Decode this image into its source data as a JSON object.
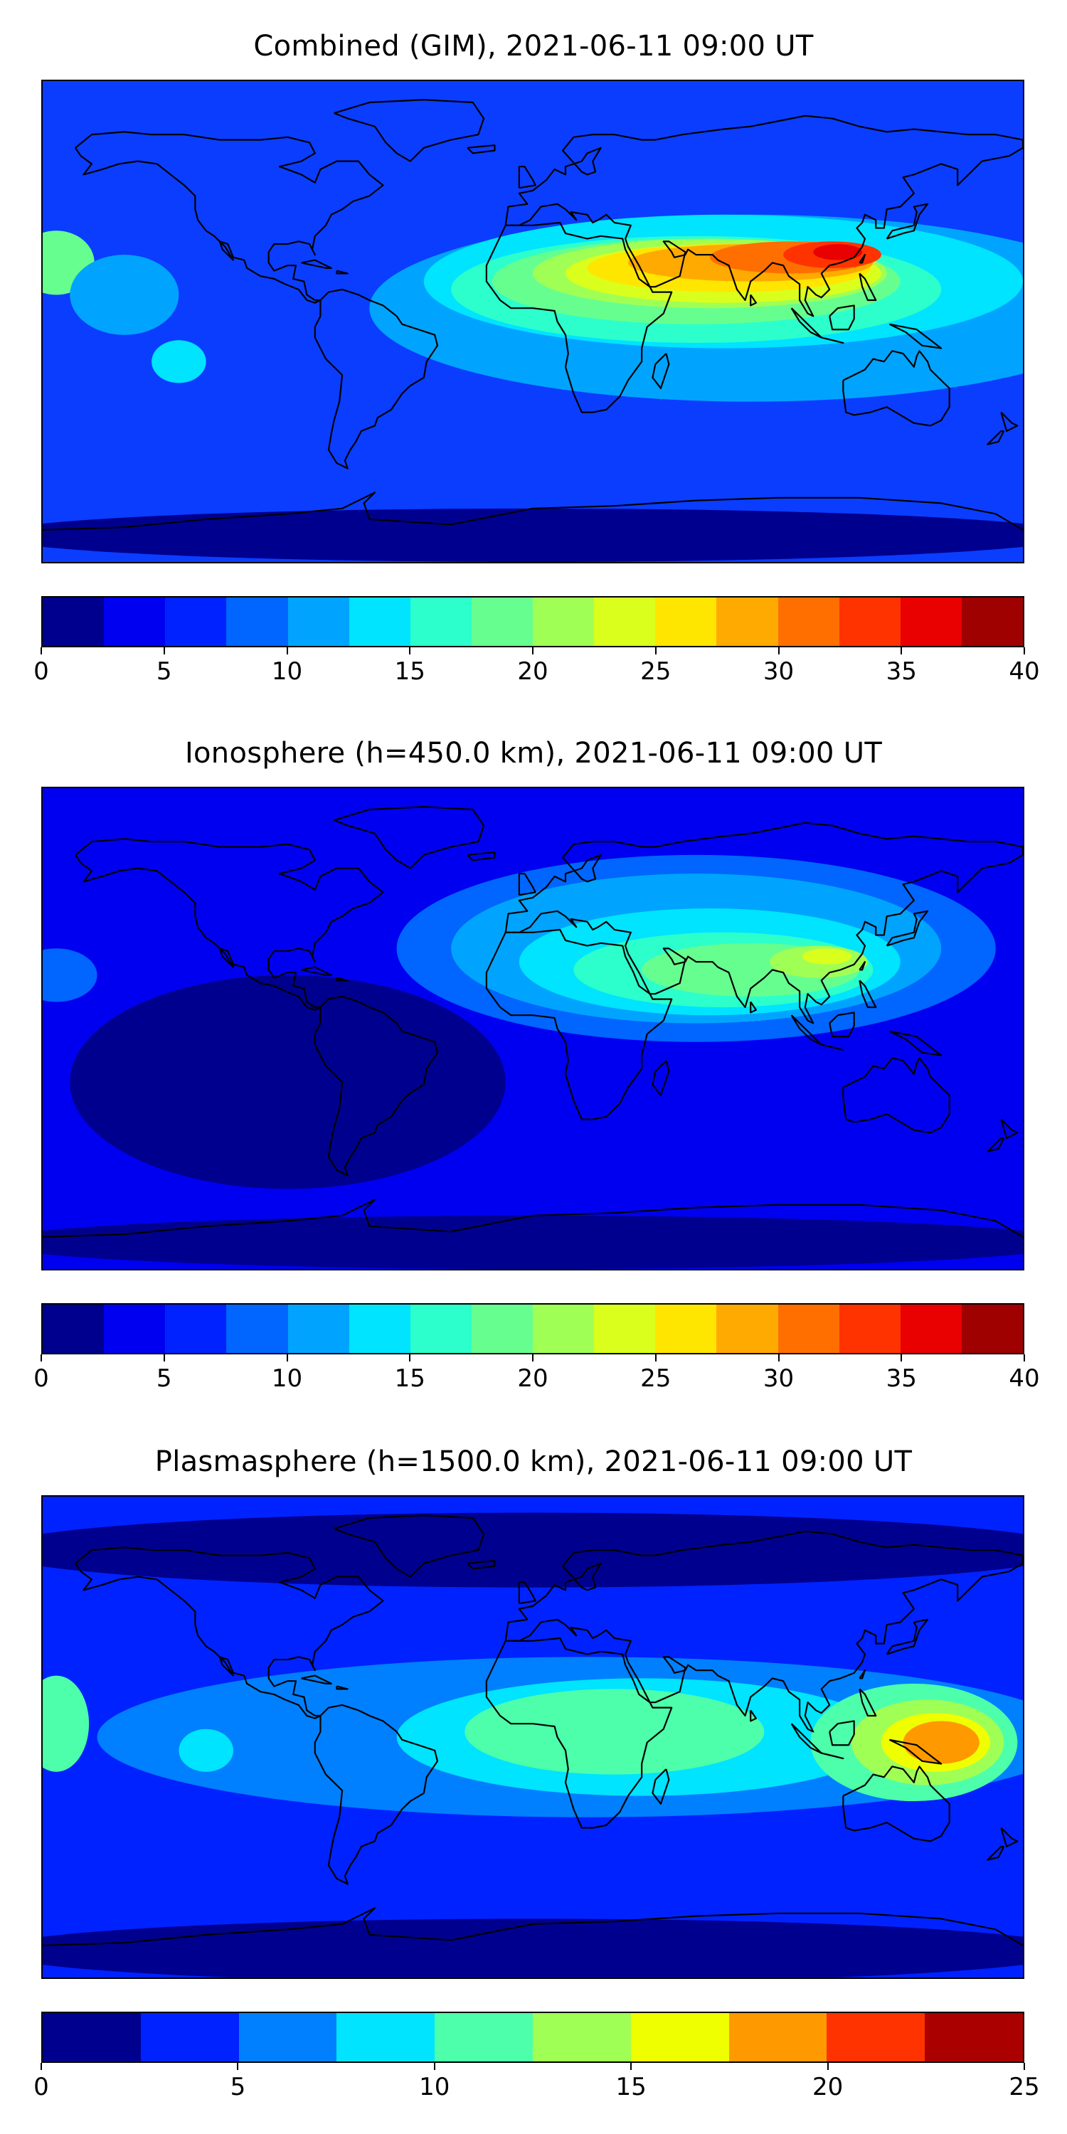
{
  "panels": [
    {
      "id": "combined",
      "title": "Combined (GIM), 2021-06-11 09:00 UT",
      "colorbar": {
        "min": 0,
        "max": 40,
        "ticks": [
          "0",
          "5",
          "10",
          "15",
          "20",
          "25",
          "30",
          "35",
          "40"
        ],
        "colors": [
          "#00008f",
          "#0000f0",
          "#0022ff",
          "#0066ff",
          "#00a4ff",
          "#00e4ff",
          "#2cffcb",
          "#66ff8f",
          "#a0ff55",
          "#daff1d",
          "#ffe600",
          "#ffaa00",
          "#ff6f00",
          "#ff3300",
          "#e90000",
          "#9f0000"
        ]
      },
      "field": {
        "background": "#0b3dff",
        "blobs": [
          {
            "lon": 80,
            "lat": 5,
            "rx_deg": 140,
            "ry_deg": 35,
            "color": "#00a4ff"
          },
          {
            "lon": 70,
            "lat": 15,
            "rx_deg": 110,
            "ry_deg": 25,
            "color": "#00e4ff"
          },
          {
            "lon": 60,
            "lat": 12,
            "rx_deg": 90,
            "ry_deg": 20,
            "color": "#2cffcb"
          },
          {
            "lon": 60,
            "lat": 15,
            "rx_deg": 75,
            "ry_deg": 16,
            "color": "#66ff8f"
          },
          {
            "lon": 65,
            "lat": 18,
            "rx_deg": 65,
            "ry_deg": 13,
            "color": "#a0ff55"
          },
          {
            "lon": 70,
            "lat": 18,
            "rx_deg": 58,
            "ry_deg": 11,
            "color": "#daff1d"
          },
          {
            "lon": 72,
            "lat": 20,
            "rx_deg": 52,
            "ry_deg": 9,
            "color": "#ffe600"
          },
          {
            "lon": 80,
            "lat": 22,
            "rx_deg": 45,
            "ry_deg": 7,
            "color": "#ffaa00"
          },
          {
            "lon": 95,
            "lat": 24,
            "rx_deg": 30,
            "ry_deg": 6,
            "color": "#ff6f00"
          },
          {
            "lon": 110,
            "lat": 25,
            "rx_deg": 18,
            "ry_deg": 5,
            "color": "#ff3300"
          },
          {
            "lon": 112,
            "lat": 26,
            "rx_deg": 9,
            "ry_deg": 3,
            "color": "#e90000"
          },
          {
            "lon": -175,
            "lat": 22,
            "rx_deg": 14,
            "ry_deg": 12,
            "color": "#66ff8f"
          },
          {
            "lon": -150,
            "lat": 10,
            "rx_deg": 20,
            "ry_deg": 15,
            "color": "#00a4ff"
          },
          {
            "lon": -130,
            "lat": -15,
            "rx_deg": 10,
            "ry_deg": 8,
            "color": "#00e4ff"
          },
          {
            "lon": 0,
            "lat": -80,
            "rx_deg": 200,
            "ry_deg": 10,
            "color": "#00008f"
          }
        ]
      }
    },
    {
      "id": "ionosphere",
      "title": "Ionosphere  (h=450.0 km), 2021-06-11 09:00 UT",
      "colorbar": {
        "min": 0,
        "max": 40,
        "ticks": [
          "0",
          "5",
          "10",
          "15",
          "20",
          "25",
          "30",
          "35",
          "40"
        ],
        "colors": [
          "#00008f",
          "#0000f0",
          "#0022ff",
          "#0066ff",
          "#00a4ff",
          "#00e4ff",
          "#2cffcb",
          "#66ff8f",
          "#a0ff55",
          "#daff1d",
          "#ffe600",
          "#ffaa00",
          "#ff6f00",
          "#ff3300",
          "#e90000",
          "#9f0000"
        ]
      },
      "field": {
        "background": "#0000f0",
        "blobs": [
          {
            "lon": 60,
            "lat": 30,
            "rx_deg": 110,
            "ry_deg": 35,
            "color": "#0066ff"
          },
          {
            "lon": 60,
            "lat": 30,
            "rx_deg": 90,
            "ry_deg": 28,
            "color": "#00a4ff"
          },
          {
            "lon": 65,
            "lat": 25,
            "rx_deg": 70,
            "ry_deg": 20,
            "color": "#00e4ff"
          },
          {
            "lon": 70,
            "lat": 22,
            "rx_deg": 55,
            "ry_deg": 14,
            "color": "#2cffcb"
          },
          {
            "lon": 80,
            "lat": 22,
            "rx_deg": 40,
            "ry_deg": 10,
            "color": "#66ff8f"
          },
          {
            "lon": 105,
            "lat": 25,
            "rx_deg": 18,
            "ry_deg": 6,
            "color": "#a0ff55"
          },
          {
            "lon": 108,
            "lat": 27,
            "rx_deg": 9,
            "ry_deg": 3,
            "color": "#daff1d"
          },
          {
            "lon": -90,
            "lat": -20,
            "rx_deg": 80,
            "ry_deg": 40,
            "color": "#00008f"
          },
          {
            "lon": 0,
            "lat": -80,
            "rx_deg": 200,
            "ry_deg": 10,
            "color": "#00008f"
          },
          {
            "lon": -175,
            "lat": 20,
            "rx_deg": 15,
            "ry_deg": 10,
            "color": "#0066ff"
          }
        ]
      }
    },
    {
      "id": "plasmasphere",
      "title": "Plasmasphere (h=1500.0 km), 2021-06-11 09:00 UT",
      "colorbar": {
        "min": 0,
        "max": 25,
        "ticks": [
          "0",
          "5",
          "10",
          "15",
          "20",
          "25"
        ],
        "colors": [
          "#00008f",
          "#0022ff",
          "#0080ff",
          "#00e4ff",
          "#4dffaa",
          "#a0ff55",
          "#f0ff00",
          "#ff9900",
          "#ff3300",
          "#aa0000"
        ]
      },
      "field": {
        "background": "#0022ff",
        "blobs": [
          {
            "lon": 20,
            "lat": 0,
            "rx_deg": 180,
            "ry_deg": 30,
            "color": "#0080ff"
          },
          {
            "lon": 40,
            "lat": 0,
            "rx_deg": 90,
            "ry_deg": 22,
            "color": "#00e4ff"
          },
          {
            "lon": 30,
            "lat": 2,
            "rx_deg": 55,
            "ry_deg": 16,
            "color": "#4dffaa"
          },
          {
            "lon": 140,
            "lat": -2,
            "rx_deg": 38,
            "ry_deg": 22,
            "color": "#4dffaa"
          },
          {
            "lon": 145,
            "lat": -2,
            "rx_deg": 28,
            "ry_deg": 16,
            "color": "#a0ff55"
          },
          {
            "lon": 148,
            "lat": -2,
            "rx_deg": 20,
            "ry_deg": 11,
            "color": "#f0ff00"
          },
          {
            "lon": 150,
            "lat": -2,
            "rx_deg": 14,
            "ry_deg": 8,
            "color": "#ff9900"
          },
          {
            "lon": -175,
            "lat": 5,
            "rx_deg": 12,
            "ry_deg": 18,
            "color": "#4dffaa"
          },
          {
            "lon": -120,
            "lat": -5,
            "rx_deg": 10,
            "ry_deg": 8,
            "color": "#00e4ff"
          },
          {
            "lon": 0,
            "lat": 70,
            "rx_deg": 200,
            "ry_deg": 14,
            "color": "#00008f"
          },
          {
            "lon": 0,
            "lat": -80,
            "rx_deg": 200,
            "ry_deg": 12,
            "color": "#00008f"
          }
        ]
      }
    }
  ]
}
